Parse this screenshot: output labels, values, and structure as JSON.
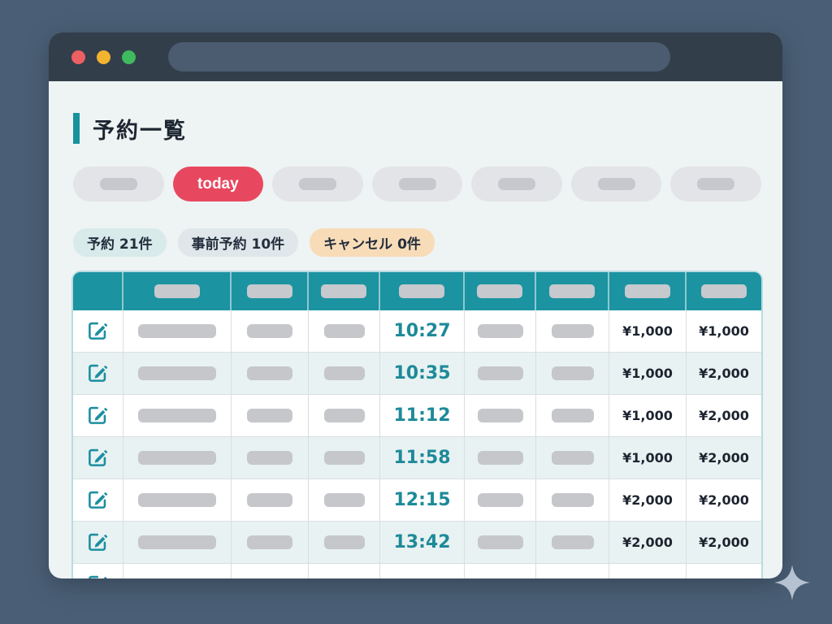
{
  "page": {
    "title": "予約一覧"
  },
  "filters": {
    "pills": [
      {
        "label": "",
        "active": false
      },
      {
        "label": "today",
        "active": true
      },
      {
        "label": "",
        "active": false
      },
      {
        "label": "",
        "active": false
      },
      {
        "label": "",
        "active": false
      },
      {
        "label": "",
        "active": false
      },
      {
        "label": "",
        "active": false
      }
    ]
  },
  "summary_badges": [
    {
      "id": "reservations",
      "label": "予約 21件",
      "bg": "#d8eaea"
    },
    {
      "id": "advance",
      "label": "事前予約 10件",
      "bg": "#dfe7eb"
    },
    {
      "id": "cancellations",
      "label": "キャンセル 0件",
      "bg": "#f8dcb8"
    }
  ],
  "table": {
    "rows": [
      {
        "time": "10:27",
        "prices": [
          "¥1,000",
          "¥1,000"
        ]
      },
      {
        "time": "10:35",
        "prices": [
          "¥1,000",
          "¥2,000"
        ]
      },
      {
        "time": "11:12",
        "prices": [
          "¥1,000",
          "¥2,000"
        ]
      },
      {
        "time": "11:58",
        "prices": [
          "¥1,000",
          "¥2,000"
        ]
      },
      {
        "time": "12:15",
        "prices": [
          "¥2,000",
          "¥2,000"
        ]
      },
      {
        "time": "13:42",
        "prices": [
          "¥2,000",
          "¥2,000"
        ]
      },
      {
        "time": "",
        "prices": [
          "",
          ""
        ],
        "partial": true
      }
    ]
  },
  "colors": {
    "accent_teal": "#1b93a1",
    "accent_red": "#e8485f",
    "time_text": "#1e8a99",
    "desktop_bg": "#4a5f76",
    "titlebar_bg": "#333e4b"
  }
}
